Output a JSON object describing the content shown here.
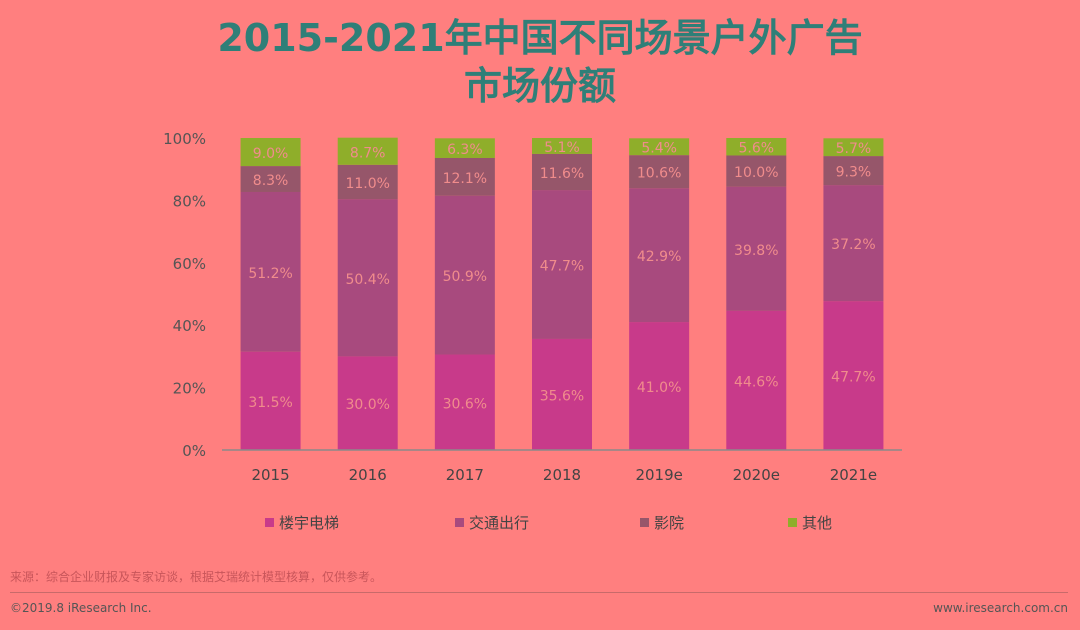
{
  "chart_data": {
    "type": "bar",
    "stacked": true,
    "title_line1": "2015-2021年中国不同场景户外广告",
    "title_line2": "市场份额",
    "categories": [
      "2015",
      "2016",
      "2017",
      "2018",
      "2019e",
      "2020e",
      "2021e"
    ],
    "series": [
      {
        "name": "楼宇电梯",
        "color": "#c83a8a",
        "values": [
          31.5,
          30.0,
          30.6,
          35.6,
          41.0,
          44.6,
          47.7
        ]
      },
      {
        "name": "交通出行",
        "color": "#a84a7e",
        "values": [
          51.2,
          50.4,
          50.9,
          47.7,
          42.9,
          39.8,
          37.2
        ]
      },
      {
        "name": "影院",
        "color": "#96566a",
        "values": [
          8.3,
          11.0,
          12.1,
          11.6,
          10.6,
          10.0,
          9.3
        ]
      },
      {
        "name": "其他",
        "color": "#8fae2a",
        "values": [
          9.0,
          8.7,
          6.3,
          5.1,
          5.4,
          5.6,
          5.7
        ]
      }
    ],
    "yticks": [
      "0%",
      "20%",
      "40%",
      "60%",
      "80%",
      "100%"
    ],
    "ylim": [
      0,
      100
    ],
    "legend_position": "bottom"
  },
  "footer": {
    "source": "来源：综合企业财报及专家访谈，根据艾瑞统计模型核算，仅供参考。",
    "copyright": "©2019.8 iResearch Inc.",
    "url": "www.iresearch.com.cn"
  }
}
